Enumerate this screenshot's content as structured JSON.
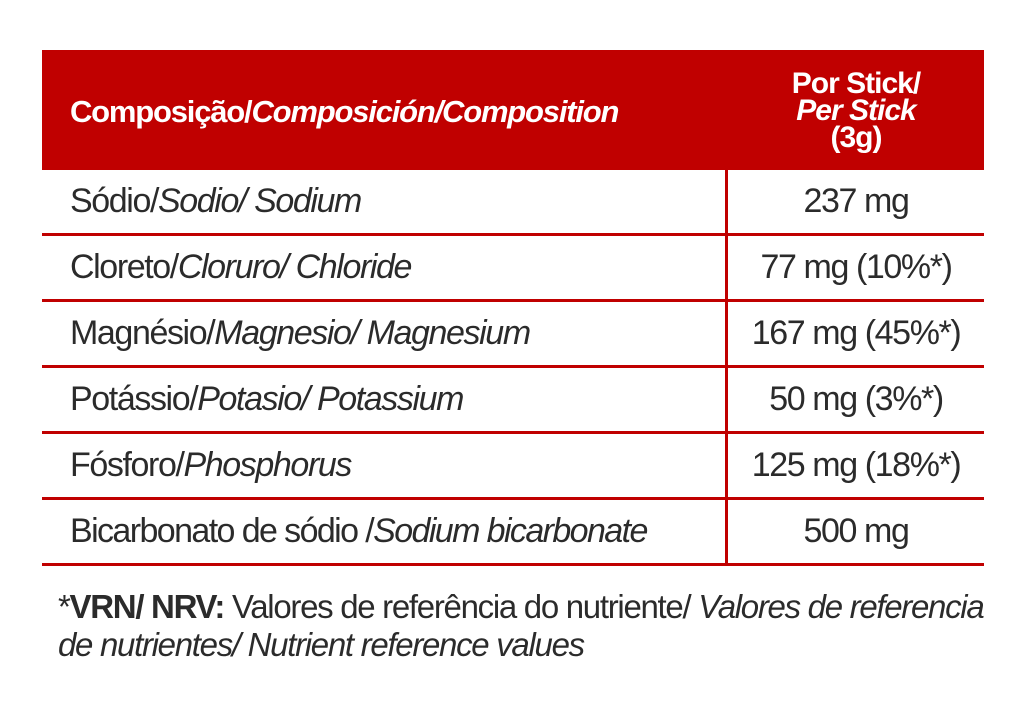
{
  "header": {
    "col1_pt": "Composição/ ",
    "col1_es": "Composición/ ",
    "col1_en": "Composition",
    "col2_line1": "Por Stick/",
    "col2_line2": "Per Stick",
    "col2_line3": "(3g)"
  },
  "rows": [
    {
      "name_pt": "Sódio/ ",
      "name_it": "Sodio/ Sodium",
      "value": "237 mg"
    },
    {
      "name_pt": "Cloreto/ ",
      "name_it": "Cloruro/ Chloride",
      "value": "77 mg (10%*)"
    },
    {
      "name_pt": "Magnésio/ ",
      "name_it": "Magnesio/ Magnesium",
      "value": "167 mg (45%*)"
    },
    {
      "name_pt": "Potássio/ ",
      "name_it": "Potasio/ Potassium",
      "value": "50 mg (3%*)"
    },
    {
      "name_pt": "Fósforo/ ",
      "name_it": "Phosphorus",
      "value": "125 mg (18%*)"
    },
    {
      "name_pt": "Bicarbonato de sódio / ",
      "name_it": "Sodium bicarbonate",
      "value": "500 mg"
    }
  ],
  "footnote": {
    "prefix": "*",
    "bold": "VRN/ NRV:",
    "normal": " Valores de referência do nutriente/ ",
    "italic": "Valores de referencia de nutrientes/ Nutrient reference values"
  },
  "colors": {
    "accent": "#c00000",
    "text": "#2b2b2b"
  }
}
